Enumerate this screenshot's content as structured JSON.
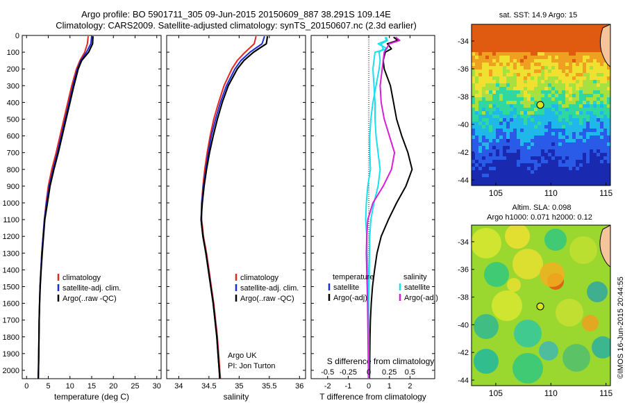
{
  "title_line1": "Argo profile: BO 5901711_305 09-Jun-2015 20150609_887 38.291S 109.14E",
  "title_line2": "Climatology: CARS2009. Satellite-adjusted climatology: synTS_20150607.nc (2.3d earlier)",
  "footer_vertical": "©IMOS 16-Jun-2015 20:44:55",
  "argo_label": "Argo UK",
  "pi_label": "PI: Jon Turton",
  "colors": {
    "climatology": "#e8251f",
    "satellite": "#1a2ad8",
    "argo": "#000000",
    "sat_diff": "#19e0ee",
    "argo_diff": "#d61ed6",
    "marker": "#d8e61a"
  },
  "chart_data": [
    {
      "type": "line",
      "xlabel": "temperature (deg C)",
      "ylabel": "",
      "xlim": [
        -1,
        31
      ],
      "ylim": [
        2050,
        0
      ],
      "xticks": [
        "0",
        "5",
        "10",
        "15",
        "20",
        "25",
        "30"
      ],
      "yticks": [
        "0",
        "100",
        "200",
        "300",
        "400",
        "500",
        "600",
        "700",
        "800",
        "900",
        "1000",
        "1100",
        "1200",
        "1300",
        "1400",
        "1500",
        "1600",
        "1700",
        "1800",
        "1900",
        "2000"
      ],
      "legend": [
        "climatology",
        "satellite-adj. clim.",
        "Argo(..raw -QC)"
      ],
      "depth": [
        5,
        50,
        100,
        150,
        200,
        300,
        400,
        500,
        600,
        700,
        800,
        900,
        1000,
        1100,
        1200,
        1300,
        1400,
        1500,
        1600,
        1700,
        1800,
        1900,
        2000,
        2050
      ],
      "series": [
        {
          "name": "climatology",
          "values": [
            14.2,
            14.0,
            13.4,
            12.3,
            11.5,
            10.4,
            9.5,
            8.6,
            7.7,
            6.8,
            5.8,
            5.0,
            4.5,
            4.1,
            3.8,
            3.5,
            3.3,
            3.1,
            3.0,
            2.9,
            2.85,
            2.8,
            2.75,
            2.7
          ]
        },
        {
          "name": "satellite-adj. clim.",
          "values": [
            15.0,
            14.8,
            13.8,
            12.5,
            11.7,
            10.7,
            9.8,
            8.9,
            8.0,
            7.1,
            6.1,
            5.2,
            4.6,
            4.1,
            3.8,
            3.5,
            3.3,
            3.1,
            3.0,
            2.9,
            2.85,
            2.8,
            2.75,
            2.7
          ]
        },
        {
          "name": "Argo(..raw -QC)",
          "values": [
            15.3,
            15.2,
            14.3,
            12.7,
            11.9,
            10.9,
            10.0,
            9.1,
            8.2,
            7.3,
            6.3,
            5.4,
            4.8,
            4.2,
            3.9,
            3.6,
            3.35,
            3.15,
            3.0,
            2.9,
            2.85,
            2.8,
            2.75,
            2.7
          ]
        }
      ]
    },
    {
      "type": "line",
      "xlabel": "salinity",
      "xlim": [
        33.8,
        36.1
      ],
      "ylim": [
        2050,
        0
      ],
      "xticks": [
        "34",
        "34.5",
        "35",
        "35.5",
        "36"
      ],
      "legend": [
        "climatology",
        "satellite-adj. clim.",
        "Argo(..raw -QC)"
      ],
      "depth": [
        5,
        50,
        100,
        150,
        200,
        300,
        400,
        500,
        600,
        700,
        800,
        900,
        1000,
        1100,
        1200,
        1300,
        1400,
        1500,
        1600,
        1700,
        1800,
        1900,
        2000,
        2050
      ],
      "series": [
        {
          "name": "climatology",
          "values": [
            35.28,
            35.25,
            35.1,
            34.97,
            34.88,
            34.75,
            34.66,
            34.58,
            34.52,
            34.47,
            34.43,
            34.4,
            34.38,
            34.38,
            34.41,
            34.46,
            34.5,
            34.54,
            34.58,
            34.61,
            34.64,
            34.66,
            34.68,
            34.69
          ]
        },
        {
          "name": "satellite-adj. clim.",
          "values": [
            35.42,
            35.38,
            35.18,
            35.03,
            34.93,
            34.79,
            34.69,
            34.61,
            34.54,
            34.49,
            34.45,
            34.41,
            34.38,
            34.37,
            34.4,
            34.45,
            34.49,
            34.53,
            34.57,
            34.6,
            34.63,
            34.65,
            34.67,
            34.68
          ]
        },
        {
          "name": "Argo(..raw -QC)",
          "values": [
            35.47,
            35.45,
            35.24,
            35.08,
            34.97,
            34.82,
            34.72,
            34.64,
            34.57,
            34.51,
            34.46,
            34.42,
            34.39,
            34.37,
            34.4,
            34.45,
            34.49,
            34.53,
            34.57,
            34.6,
            34.63,
            34.65,
            34.67,
            34.68
          ]
        }
      ]
    },
    {
      "type": "line",
      "xlabel": "T difference from climatology",
      "top_xlabel": "S difference from climatology",
      "xlim": [
        -2.8,
        3.2
      ],
      "ylim": [
        2050,
        0
      ],
      "xticks": [
        "-2",
        "-1",
        "0",
        "1",
        "2"
      ],
      "top_xticks": [
        "-0.5",
        "-0.25",
        "0",
        "0.25",
        "0.5"
      ],
      "legend_left_title": "temperature",
      "legend_right_title": "salinity",
      "legend_left": [
        "satellite",
        "Argo(-adj)"
      ],
      "legend_right": [
        "satellite",
        "Argo(-adj)"
      ],
      "depth": [
        10,
        30,
        50,
        80,
        100,
        150,
        200,
        300,
        400,
        500,
        600,
        700,
        800,
        900,
        1000,
        1100,
        1200,
        1300,
        1400,
        1500,
        1600,
        1700,
        1800,
        1900,
        2000,
        2050
      ],
      "series": [
        {
          "name": "temperature satellite",
          "values": [
            0.8,
            0.85,
            0.45,
            0.9,
            0.3,
            0.25,
            0.2,
            0.25,
            0.3,
            0.3,
            0.35,
            0.45,
            0.55,
            0.45,
            0.25,
            0.1,
            0.05,
            0.03,
            0.02,
            0.01,
            0.0,
            0.0,
            0.0,
            0.0,
            0.0,
            0.0
          ]
        },
        {
          "name": "temperature Argo(-adj)",
          "values": [
            1.2,
            1.4,
            0.9,
            1.1,
            0.8,
            0.7,
            0.75,
            1.05,
            1.2,
            1.35,
            1.6,
            1.9,
            2.1,
            1.8,
            1.35,
            0.95,
            0.6,
            0.4,
            0.28,
            0.18,
            0.12,
            0.08,
            0.06,
            0.05,
            0.04,
            0.03
          ]
        },
        {
          "name": "salinity satellite",
          "values": [
            0.85,
            0.9,
            0.6,
            0.7,
            0.5,
            0.55,
            0.5,
            0.35,
            0.2,
            0.1,
            0.05,
            0.05,
            0.08,
            -0.05,
            -0.12,
            -0.15,
            -0.1,
            -0.08,
            -0.05,
            -0.03,
            -0.02,
            -0.01,
            0.0,
            0.0,
            0.0,
            0.0
          ]
        },
        {
          "name": "salinity Argo(-adj)",
          "values": [
            1.3,
            1.5,
            1.0,
            0.85,
            0.75,
            0.7,
            0.65,
            0.55,
            0.6,
            0.75,
            1.0,
            1.25,
            1.1,
            0.7,
            0.2,
            -0.05,
            -0.1,
            -0.12,
            -0.1,
            -0.08,
            -0.06,
            -0.05,
            -0.04,
            -0.03,
            -0.02,
            -0.02
          ]
        }
      ]
    },
    {
      "type": "heatmap",
      "title": "sat. SST: 14.9  Argo: 15",
      "xticks": [
        "105",
        "110",
        "115"
      ],
      "yticks": [
        "-34",
        "-36",
        "-38",
        "-40",
        "-42",
        "-44"
      ],
      "xlim": [
        102.8,
        115.4
      ],
      "ylim": [
        -44.4,
        -32.8
      ],
      "marker": {
        "lon": 109.14,
        "lat": -38.291
      }
    },
    {
      "type": "heatmap",
      "title_line1": "Altim. SLA: 0.098",
      "title_line2": "Argo h1000: 0.071  h2000: 0.12",
      "xticks": [
        "105",
        "110",
        "115"
      ],
      "yticks": [
        "-34",
        "-36",
        "-38",
        "-40",
        "-42",
        "-44"
      ],
      "xlim": [
        102.8,
        115.4
      ],
      "ylim": [
        -44.4,
        -32.8
      ],
      "marker": {
        "lon": 109.14,
        "lat": -38.291
      }
    }
  ]
}
